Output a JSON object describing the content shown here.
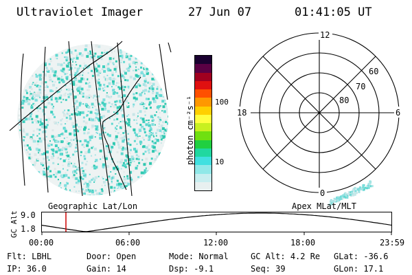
{
  "header": {
    "instrument": "Ultraviolet Imager",
    "date": "27 Jun 07",
    "time": "01:41:05 UT"
  },
  "colorbar": {
    "unit_label": "photon cm⁻²s⁻¹",
    "ticks": [
      "100",
      "10"
    ],
    "colors_top_to_bottom": [
      "#1a0030",
      "#5a0044",
      "#a00020",
      "#e01010",
      "#ff5000",
      "#ff9800",
      "#ffd000",
      "#ffff40",
      "#c8f020",
      "#70e010",
      "#20d040",
      "#20d8a0",
      "#40e0e0",
      "#90e8e8",
      "#c8eef0",
      "#e8f0f0"
    ]
  },
  "polar": {
    "mlt_labels": {
      "top": "12",
      "left": "18",
      "right": "6",
      "bottom": "0"
    },
    "lat_labels": [
      "60",
      "70",
      "80"
    ]
  },
  "geo_label": "Geographic Lat/Lon",
  "apex_label": "Apex MLat/MLT",
  "timeline": {
    "y_axis_title": "GC Alt",
    "y_ticks": [
      "9.0",
      "1.8"
    ],
    "x_ticks": [
      "00:00",
      "06:00",
      "12:00",
      "18:00",
      "23:59"
    ],
    "current_marker_color": "#cc0000"
  },
  "status": {
    "row1": [
      {
        "label": "Flt:",
        "value": "LBHL"
      },
      {
        "label": "Door:",
        "value": "Open"
      },
      {
        "label": "Mode:",
        "value": "Normal"
      },
      {
        "label": "GC Alt:",
        "value": "4.2 Re"
      },
      {
        "label": "GLat:",
        "value": "-36.6"
      }
    ],
    "row2": [
      {
        "label": "IP:",
        "value": "36.0"
      },
      {
        "label": "Gain:",
        "value": "14"
      },
      {
        "label": "Dsp:",
        "value": "-9.1"
      },
      {
        "label": "Seq:",
        "value": "39"
      },
      {
        "label": "GLon:",
        "value": "17.1"
      }
    ]
  }
}
